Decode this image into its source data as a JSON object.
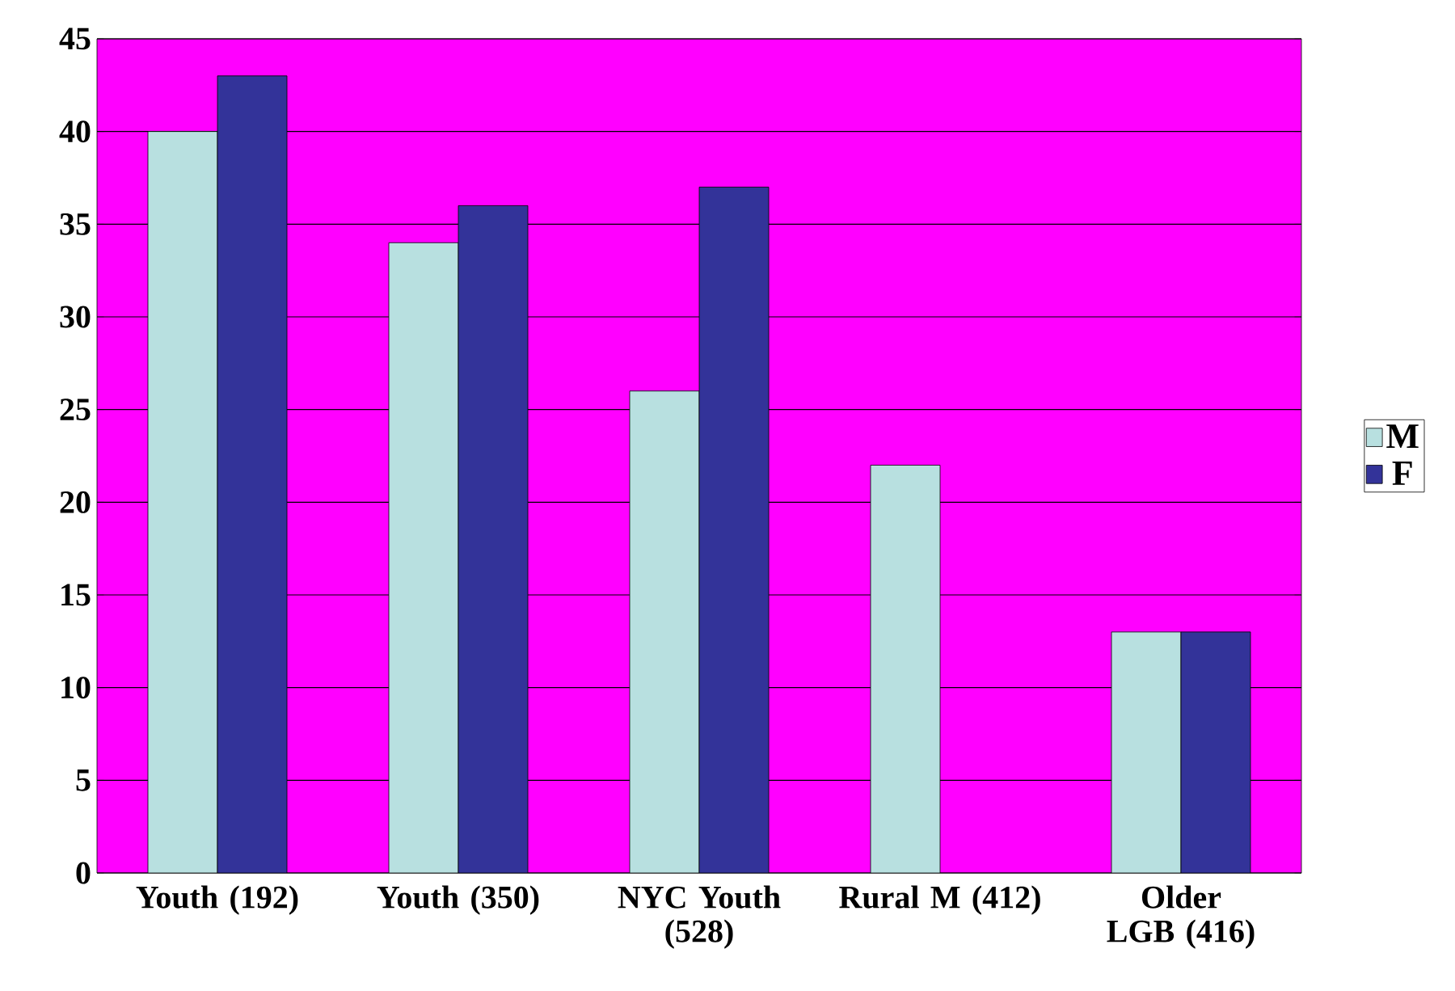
{
  "chart_data": {
    "type": "bar",
    "categories": [
      "Youth (192)",
      "Youth (350)",
      "NYC Youth (528)",
      "Rural M (412)",
      "Older LGB (416)"
    ],
    "series": [
      {
        "name": "M",
        "color": "#b8e0e0",
        "values": [
          40,
          34,
          26,
          22,
          13
        ]
      },
      {
        "name": "F",
        "color": "#333399",
        "values": [
          43,
          36,
          37,
          null,
          13
        ]
      }
    ],
    "ylim": [
      0,
      45
    ],
    "yticks": [
      0,
      5,
      10,
      15,
      20,
      25,
      30,
      35,
      40,
      45
    ],
    "grid": "y",
    "legend": "right"
  }
}
